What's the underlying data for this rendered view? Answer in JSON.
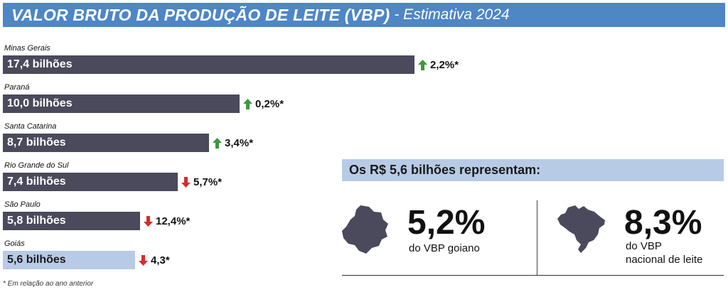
{
  "title": {
    "main": "VALOR BRUTO DA PRODUÇÃO DE LEITE (VBP)",
    "sub": "- Estimativa 2024"
  },
  "colors": {
    "title_bg": "#4e86c6",
    "bar_dark": "#4a4a5c",
    "bar_highlight": "#b8cbe6",
    "up_arrow": "#3a9a3a",
    "down_arrow": "#d62b2b"
  },
  "chart_data": {
    "type": "bar",
    "orientation": "horizontal",
    "unit": "bilhões",
    "categories": [
      "Minas Gerais",
      "Paraná",
      "Santa Catarina",
      "Rio Grande do Sul",
      "São Paulo",
      "Goiás"
    ],
    "values": [
      17.4,
      10.0,
      8.7,
      7.4,
      5.8,
      5.6
    ],
    "value_labels": [
      "17,4 bilhões",
      "10,0 bilhões",
      "8,7 bilhões",
      "7,4 bilhões",
      "5,8 bilhões",
      "5,6 bilhões"
    ],
    "changes": [
      {
        "label": "2,2%*",
        "direction": "up"
      },
      {
        "label": "0,2%*",
        "direction": "up"
      },
      {
        "label": "3,4%*",
        "direction": "up"
      },
      {
        "label": "5,7%*",
        "direction": "down"
      },
      {
        "label": "12,4%*",
        "direction": "down"
      },
      {
        "label": "4,3*",
        "direction": "down"
      }
    ],
    "highlight": "Goiás",
    "footnote": "* Em relação ao ano anterior"
  },
  "panel": {
    "heading": "Os R$ 5,6 bilhões representam:",
    "left": {
      "value": "5,2%",
      "caption": "do VBP goiano",
      "icon": "goias-map-icon"
    },
    "right": {
      "value": "8,3%",
      "caption_line1": "do VBP",
      "caption_line2": "nacional de leite",
      "icon": "brazil-map-icon"
    }
  }
}
